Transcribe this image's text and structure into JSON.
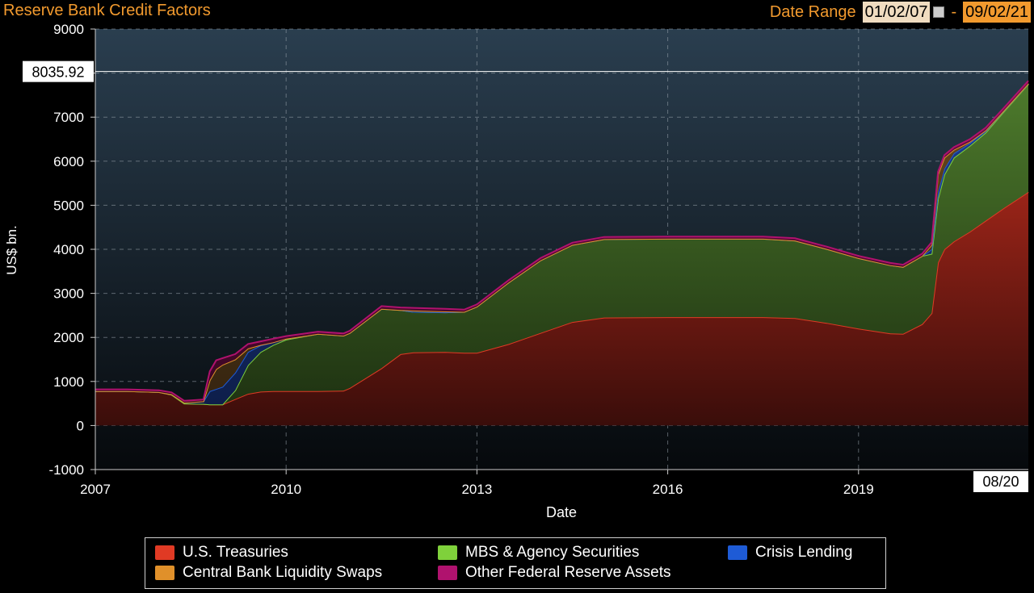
{
  "header": {
    "title": "Reserve Bank Credit Factors",
    "date_range_label": "Date Range",
    "start_date": "01/02/07",
    "separator": "-",
    "end_date": "09/02/21"
  },
  "chart_data": {
    "type": "area",
    "title": "Reserve Bank Credit Factors",
    "xlabel": "Date",
    "ylabel": "US$ bn.",
    "xlim": [
      2007.0,
      2021.67
    ],
    "ylim": [
      -1000,
      9000
    ],
    "x_ticks": [
      "2007",
      "2010",
      "2013",
      "2016",
      "2019"
    ],
    "y_ticks": [
      -1000,
      0,
      1000,
      2000,
      3000,
      4000,
      5000,
      6000,
      7000,
      8000,
      9000
    ],
    "grid": true,
    "stacked": true,
    "last_value_label": "8035.92",
    "last_date_label": "08/20",
    "x": [
      2007.0,
      2007.5,
      2008.0,
      2008.2,
      2008.4,
      2008.7,
      2008.8,
      2008.9,
      2009.0,
      2009.2,
      2009.4,
      2009.6,
      2009.8,
      2010.0,
      2010.5,
      2010.9,
      2011.0,
      2011.5,
      2011.8,
      2012.0,
      2012.5,
      2012.8,
      2013.0,
      2013.5,
      2014.0,
      2014.5,
      2015.0,
      2016.0,
      2017.0,
      2017.5,
      2018.0,
      2018.5,
      2019.0,
      2019.5,
      2019.7,
      2020.0,
      2020.15,
      2020.25,
      2020.35,
      2020.5,
      2020.75,
      2021.0,
      2021.3,
      2021.67
    ],
    "series": [
      {
        "name": "U.S. Treasuries",
        "color": "#e03a24",
        "values": [
          780,
          780,
          760,
          700,
          500,
          490,
          480,
          480,
          480,
          600,
          720,
          770,
          780,
          780,
          780,
          790,
          850,
          1300,
          1620,
          1660,
          1670,
          1650,
          1650,
          1850,
          2100,
          2350,
          2450,
          2460,
          2460,
          2460,
          2440,
          2330,
          2200,
          2090,
          2080,
          2300,
          2550,
          3700,
          4000,
          4180,
          4400,
          4650,
          4950,
          5300
        ]
      },
      {
        "name": "MBS & Agency Securities",
        "color": "#7fd13b",
        "values": [
          0,
          0,
          0,
          0,
          0,
          0,
          0,
          0,
          0,
          200,
          650,
          900,
          1050,
          1170,
          1300,
          1250,
          1250,
          1350,
          1000,
          920,
          900,
          930,
          1050,
          1400,
          1650,
          1750,
          1780,
          1780,
          1780,
          1780,
          1760,
          1680,
          1600,
          1550,
          1520,
          1550,
          1350,
          1450,
          1700,
          1900,
          1950,
          2000,
          2200,
          2450
        ]
      },
      {
        "name": "Crisis Lending",
        "color": "#1e5bd6",
        "values": [
          0,
          0,
          0,
          10,
          20,
          60,
          300,
          350,
          400,
          400,
          300,
          150,
          60,
          20,
          0,
          0,
          0,
          0,
          0,
          0,
          0,
          0,
          0,
          0,
          0,
          0,
          0,
          0,
          0,
          0,
          0,
          0,
          0,
          0,
          0,
          0,
          100,
          150,
          130,
          100,
          60,
          40,
          20,
          10
        ]
      },
      {
        "name": "Central Bank Liquidity Swaps",
        "color": "#e0902a",
        "values": [
          0,
          0,
          0,
          0,
          0,
          0,
          250,
          450,
          500,
          300,
          80,
          10,
          0,
          0,
          0,
          0,
          0,
          0,
          0,
          30,
          20,
          0,
          0,
          0,
          0,
          0,
          0,
          0,
          0,
          0,
          0,
          0,
          0,
          0,
          0,
          0,
          100,
          400,
          250,
          80,
          30,
          10,
          5,
          5
        ]
      },
      {
        "name": "Other Federal Reserve Assets",
        "color": "#b0126e",
        "values": [
          40,
          40,
          40,
          40,
          40,
          40,
          200,
          200,
          150,
          120,
          100,
          80,
          80,
          60,
          50,
          50,
          50,
          60,
          60,
          60,
          60,
          50,
          50,
          50,
          50,
          50,
          50,
          50,
          50,
          50,
          50,
          50,
          50,
          50,
          50,
          50,
          60,
          60,
          60,
          60,
          60,
          60,
          60,
          60
        ]
      }
    ]
  },
  "legend": {
    "items": [
      {
        "label": "U.S. Treasuries",
        "color": "#e03a24"
      },
      {
        "label": "MBS & Agency Securities",
        "color": "#7fd13b"
      },
      {
        "label": "Crisis Lending",
        "color": "#1e5bd6"
      },
      {
        "label": "Central Bank Liquidity Swaps",
        "color": "#e0902a"
      },
      {
        "label": "Other Federal Reserve Assets",
        "color": "#b0126e"
      }
    ]
  }
}
